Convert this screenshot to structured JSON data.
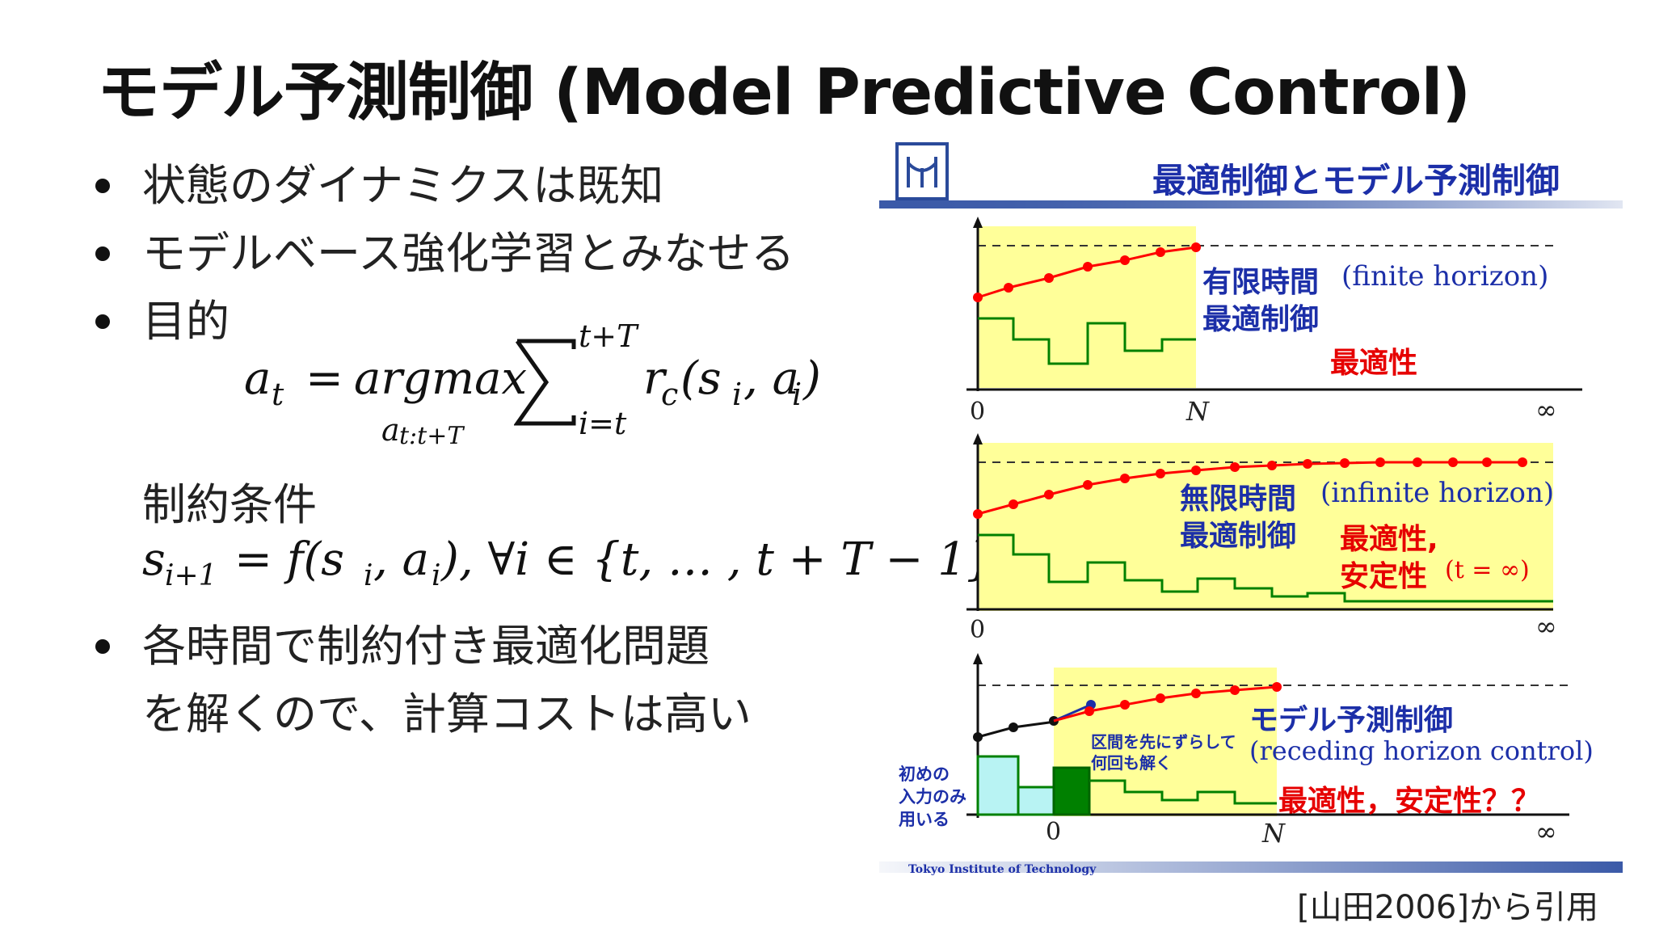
{
  "slide": {
    "title": "モデル予測制御 (Model Predictive Control)",
    "bullets": [
      "状態のダイナミクスは既知",
      "モデルベース強化学習とみなせる",
      "目的",
      "各時間で制約付き最適化問題",
      "を解くので、計算コストは高い"
    ],
    "objective": {
      "lhs": "a",
      "lhs_sub": "t",
      "eq": "=",
      "op": "argmax",
      "op_sub": "a",
      "op_sub_range": "t:t+T",
      "sum_top": "t+T",
      "sum_bottom": "i=t",
      "term": "r",
      "term_sub": "c",
      "term_args": "(s",
      "args_i": "i",
      "args_mid": ", a",
      "args_i2": "i",
      "args_close": ")"
    },
    "constraint_label": "制約条件",
    "constraint": {
      "s": "s",
      "s_sub": "i+1",
      "rest1": "= f(s",
      "i1": "i",
      "rest2": ", a",
      "i2": "i",
      "rest3": "), ∀i ∈ {t, … , t + T − 1}"
    },
    "citation": "[山田2006]から引用"
  },
  "figure": {
    "header_title": "最適制御とモデル予測制御",
    "footer_institution": "Tokyo Institute of Technology",
    "panel1": {
      "label1": "有限時間",
      "label1_en": "(finite horizon)",
      "label2": "最適制御",
      "property": "最適性",
      "x_start": "0",
      "x_end": "N",
      "x_inf": "∞"
    },
    "panel2": {
      "label1": "無限時間",
      "label1_en": "(infinite horizon)",
      "label2": "最適制御",
      "property1": "最適性,",
      "property2": "安定性",
      "property2_note": "(t = ∞)",
      "x_start": "0",
      "x_inf": "∞"
    },
    "panel3": {
      "label1": "モデル予測制御",
      "label1_en": "(receding horizon control)",
      "property": "最適性，安定性？？",
      "note1": "区間を先にずらして",
      "note2": "何回も解く",
      "side1": "初めの",
      "side2": "入力のみ",
      "side3": "用いる",
      "x_start": "0",
      "x_end": "N",
      "x_inf": "∞"
    },
    "colors": {
      "highlight": "#ffff99",
      "trajectory": "#ff0000",
      "input": "#008000",
      "label_blue": "#1c2fa8",
      "label_red": "#e60000",
      "applied_input": "#006400",
      "first_inputs": "#b8f3f3",
      "header_bar": "#3b5aa8"
    }
  }
}
